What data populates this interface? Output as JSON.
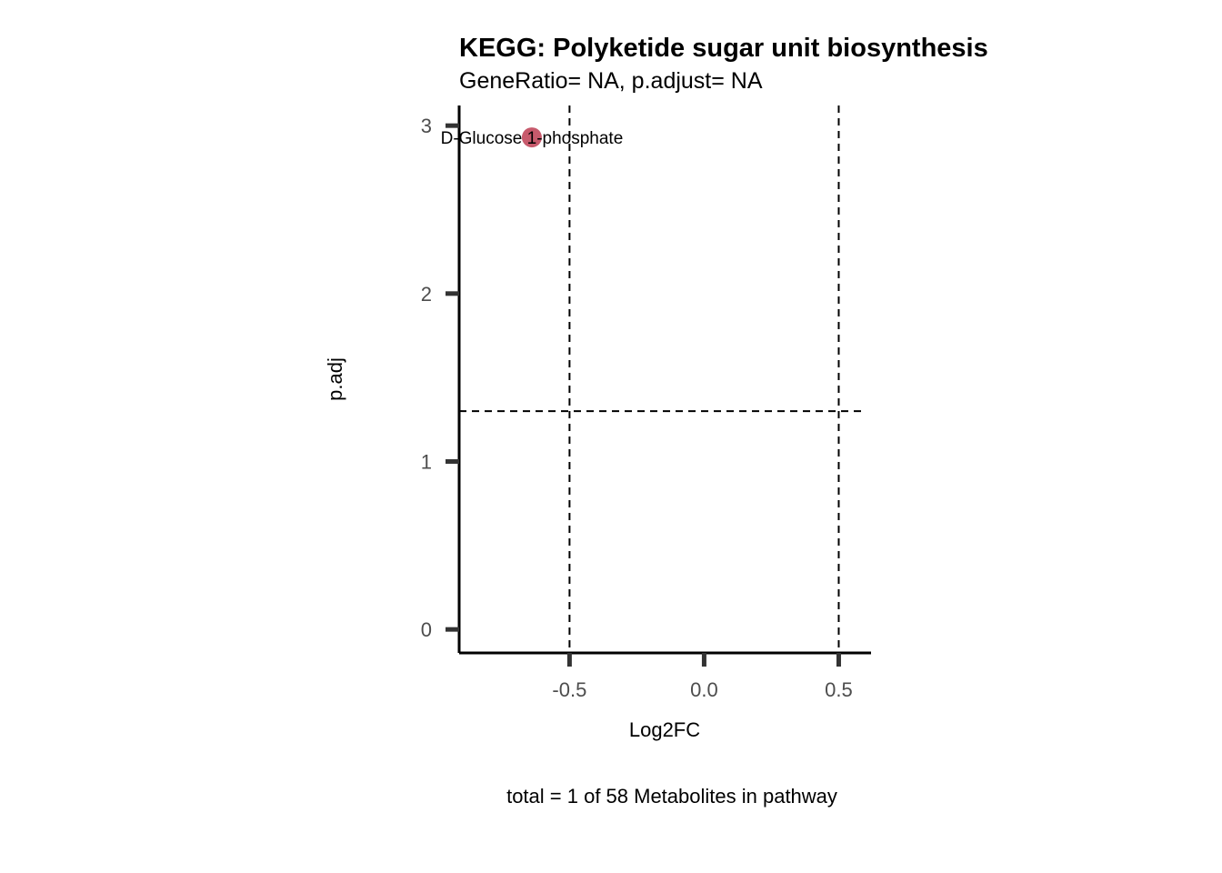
{
  "chart_data": {
    "type": "scatter",
    "title": "KEGG: Polyketide sugar unit biosynthesis",
    "subtitle": "GeneRatio= NA, p.adjust= NA",
    "xlabel": "Log2FC",
    "ylabel": "p.adj",
    "caption": "total = 1 of 58 Metabolites in pathway",
    "xlim": [
      -0.91,
      0.62
    ],
    "ylim": [
      -0.14,
      3.12
    ],
    "x_ticks": [
      {
        "value": -0.5,
        "label": "-0.5"
      },
      {
        "value": 0.0,
        "label": "0.0"
      },
      {
        "value": 0.5,
        "label": "0.5"
      }
    ],
    "y_ticks": [
      {
        "value": 0,
        "label": "0"
      },
      {
        "value": 1,
        "label": "1"
      },
      {
        "value": 2,
        "label": "2"
      },
      {
        "value": 3,
        "label": "3"
      }
    ],
    "reference_lines": {
      "vertical": [
        -0.5,
        0.5
      ],
      "horizontal": [
        1.3
      ]
    },
    "points": [
      {
        "x": -0.64,
        "y": 2.93,
        "label": "D-Glucose 1-phosphate",
        "color": "#c75a6c"
      }
    ],
    "grid": false,
    "legend": "none"
  }
}
